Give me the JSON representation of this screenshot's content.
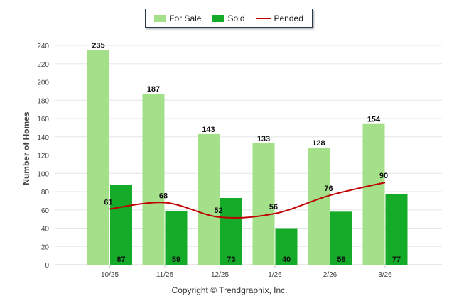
{
  "chart_data": {
    "type": "bar",
    "categories": [
      "10/25",
      "11/25",
      "12/25",
      "1/26",
      "2/26",
      "3/26"
    ],
    "series": [
      {
        "name": "For Sale",
        "type": "bar",
        "color": "#a3e089",
        "values": [
          235,
          187,
          143,
          133,
          128,
          154
        ]
      },
      {
        "name": "Sold",
        "type": "bar",
        "color": "#14ab29",
        "values": [
          87,
          59,
          73,
          40,
          58,
          77
        ]
      },
      {
        "name": "Pended",
        "type": "line",
        "color": "#c00000",
        "values": [
          61,
          68,
          52,
          56,
          76,
          90
        ]
      }
    ],
    "ylabel": "Number of Homes",
    "xlabel": "",
    "ylim": [
      0,
      240
    ],
    "yticks": [
      0,
      20,
      40,
      60,
      80,
      100,
      120,
      140,
      160,
      180,
      200,
      220,
      240
    ],
    "grid": true,
    "legend": "top-center"
  },
  "footer": {
    "copyright": "Copyright © Trendgraphix, Inc."
  }
}
